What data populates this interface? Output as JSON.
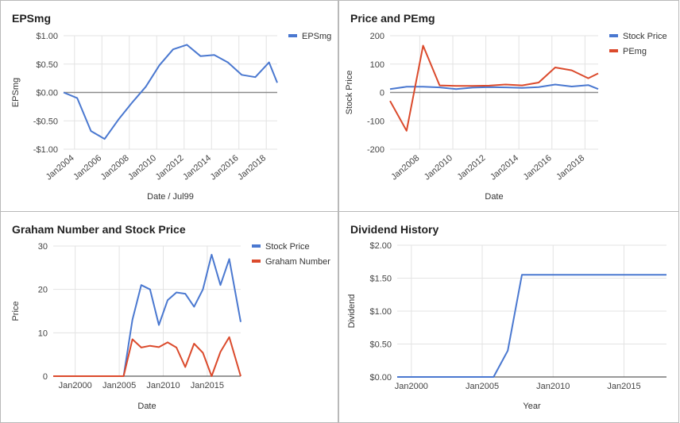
{
  "charts": [
    {
      "type": "line",
      "title": "EPSmg",
      "xlabel": "Date / Jul99",
      "ylabel": "EPSmg",
      "ylim": [
        -1.0,
        1.0
      ],
      "yticks": [
        -1.0,
        -0.5,
        0.0,
        0.5,
        1.0
      ],
      "ytick_labels": [
        "-$1.00",
        "-$0.50",
        "$0.00",
        "$0.50",
        "$1.00"
      ],
      "xticks": [
        2004,
        2006,
        2008,
        2010,
        2012,
        2014,
        2016,
        2018
      ],
      "xtick_labels": [
        "Jan2004",
        "Jan2006",
        "Jan2008",
        "Jan2010",
        "Jan2012",
        "Jan2014",
        "Jan2016",
        "Jan2018"
      ],
      "xlim": [
        2003.2,
        2018.8
      ],
      "legend": "right",
      "grid": true,
      "series": [
        {
          "name": "EPSmg",
          "color": "#4a78d0",
          "x": [
            2003.2,
            2004.2,
            2005.2,
            2006.2,
            2007.2,
            2008.2,
            2009.2,
            2010.2,
            2011.2,
            2012.2,
            2013.2,
            2014.2,
            2015.2,
            2016.2,
            2017.2,
            2018.2,
            2018.8
          ],
          "y": [
            0.0,
            -0.1,
            -0.68,
            -0.82,
            -0.48,
            -0.18,
            0.1,
            0.48,
            0.76,
            0.84,
            0.64,
            0.66,
            0.53,
            0.31,
            0.27,
            0.53,
            0.17
          ]
        }
      ]
    },
    {
      "type": "line",
      "title": "Price and PEmg",
      "xlabel": "Date",
      "ylabel": "Stock Price",
      "ylim": [
        -200,
        200
      ],
      "yticks": [
        -200,
        -100,
        0,
        100,
        200
      ],
      "ytick_labels": [
        "-200",
        "-100",
        "0",
        "100",
        "200"
      ],
      "xticks": [
        2008,
        2010,
        2012,
        2014,
        2016,
        2018
      ],
      "xtick_labels": [
        "Jan2008",
        "Jan2010",
        "Jan2012",
        "Jan2014",
        "Jan2016",
        "Jan2018"
      ],
      "xlim": [
        2006.2,
        2018.8
      ],
      "legend": "right",
      "grid": true,
      "series": [
        {
          "name": "Stock Price",
          "color": "#4a78d0",
          "x": [
            2006.2,
            2007.2,
            2008.2,
            2009.2,
            2010.2,
            2011.2,
            2012.2,
            2013.2,
            2014.2,
            2015.2,
            2016.2,
            2017.2,
            2018.2,
            2018.8
          ],
          "y": [
            12,
            20,
            20,
            18,
            12,
            17,
            19,
            18,
            16,
            19,
            28,
            21,
            26,
            12
          ]
        },
        {
          "name": "PEmg",
          "color": "#db4a2c",
          "x": [
            2006.2,
            2007.2,
            2008.2,
            2009.2,
            2010.2,
            2011.2,
            2012.2,
            2013.2,
            2014.2,
            2015.2,
            2016.2,
            2017.2,
            2018.2,
            2018.8
          ],
          "y": [
            -30,
            -135,
            165,
            25,
            23,
            23,
            24,
            28,
            25,
            35,
            88,
            78,
            50,
            67
          ]
        }
      ]
    },
    {
      "type": "line",
      "title": "Graham Number and Stock Price",
      "xlabel": "Date",
      "ylabel": "Price",
      "ylim": [
        0,
        30
      ],
      "yticks": [
        0,
        10,
        20,
        30
      ],
      "ytick_labels": [
        "0",
        "10",
        "20",
        "30"
      ],
      "xticks": [
        2000,
        2005,
        2010,
        2015
      ],
      "xtick_labels": [
        "Jan2000",
        "Jan2005",
        "Jan2010",
        "Jan2015"
      ],
      "xlim": [
        1997.5,
        2018.8
      ],
      "legend": "right",
      "grid": true,
      "series": [
        {
          "name": "Stock Price",
          "color": "#4a78d0",
          "x": [
            1997.5,
            2004.5,
            2005.5,
            2006.5,
            2007.5,
            2008.5,
            2009.5,
            2010.5,
            2011.5,
            2012.5,
            2013.5,
            2014.5,
            2015.5,
            2016.5,
            2017.5,
            2018.8
          ],
          "y": [
            0,
            0,
            0,
            13,
            21,
            20,
            11.8,
            17.5,
            19.3,
            19,
            16,
            20,
            28,
            21,
            27,
            12.5
          ]
        },
        {
          "name": "Graham Number",
          "color": "#db4a2c",
          "x": [
            1997.5,
            2004.5,
            2005.5,
            2006.5,
            2007.5,
            2008.5,
            2009.5,
            2010.5,
            2011.5,
            2012.5,
            2013.5,
            2014.5,
            2015.5,
            2016.5,
            2017.5,
            2018.8
          ],
          "y": [
            0,
            0,
            0,
            8.5,
            6.6,
            7,
            6.7,
            7.8,
            6.6,
            2.1,
            7.5,
            5.4,
            0,
            5.6,
            9,
            0
          ]
        }
      ]
    },
    {
      "type": "line",
      "title": "Dividend History",
      "xlabel": "Year",
      "ylabel": "Dividend",
      "ylim": [
        0,
        2.0
      ],
      "yticks": [
        0,
        0.5,
        1.0,
        1.5,
        2.0
      ],
      "ytick_labels": [
        "$0.00",
        "$0.50",
        "$1.00",
        "$1.50",
        "$2.00"
      ],
      "xticks": [
        2000,
        2005,
        2010,
        2015
      ],
      "xtick_labels": [
        "Jan2000",
        "Jan2005",
        "Jan2010",
        "Jan2015"
      ],
      "xlim": [
        1999.0,
        2018.0
      ],
      "legend": "none",
      "grid": true,
      "series": [
        {
          "name": "",
          "color": "#4a78d0",
          "x": [
            1999.0,
            2005.8,
            2006.8,
            2007.8,
            2018.0
          ],
          "y": [
            0,
            0,
            0.4,
            1.55,
            1.55
          ]
        }
      ]
    }
  ]
}
